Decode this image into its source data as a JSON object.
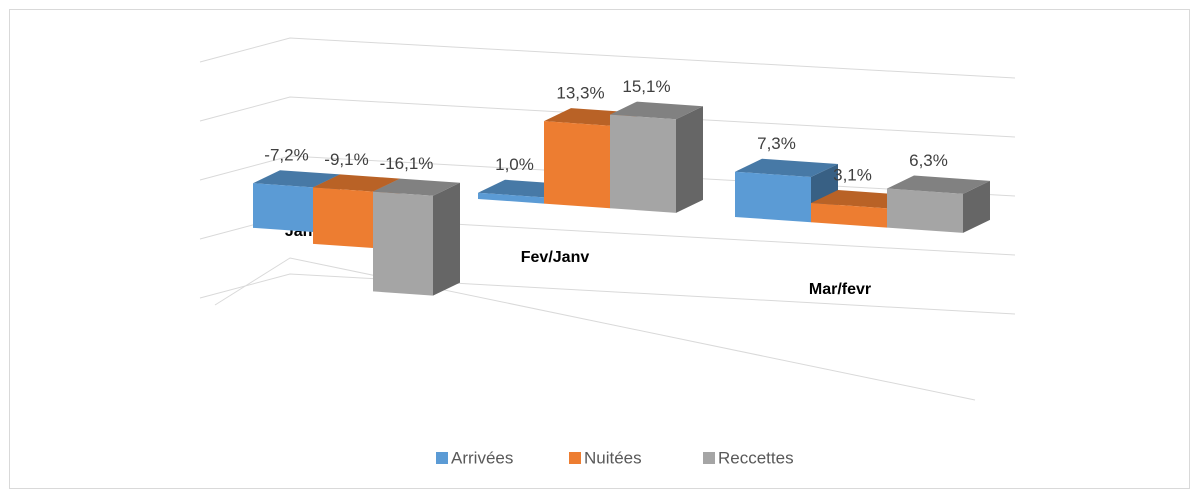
{
  "chart_data": {
    "type": "bar3d",
    "categories": [
      "Janv/Dec",
      "Fev/Janv",
      "Mar/fevr"
    ],
    "series": [
      {
        "name": "Arrivées",
        "color": "#5b9bd5",
        "values": [
          -7.2,
          1.0,
          7.3
        ],
        "value_labels": [
          "-7,2%",
          "1,0%",
          "7,3%"
        ]
      },
      {
        "name": "Nuitées",
        "color": "#ed7d31",
        "values": [
          -9.1,
          13.3,
          3.1
        ],
        "value_labels": [
          "-9,1%",
          "13,3%",
          "3,1%"
        ]
      },
      {
        "name": "Reccettes",
        "color": "#a5a5a5",
        "values": [
          -16.1,
          15.1,
          6.3
        ],
        "value_labels": [
          "-16,1%",
          "15,1%",
          "6,3%"
        ]
      }
    ],
    "ylim": [
      -20,
      20
    ],
    "yticks": [
      -20,
      -10,
      0,
      10,
      20
    ],
    "grid": true,
    "legend": "bottom"
  }
}
